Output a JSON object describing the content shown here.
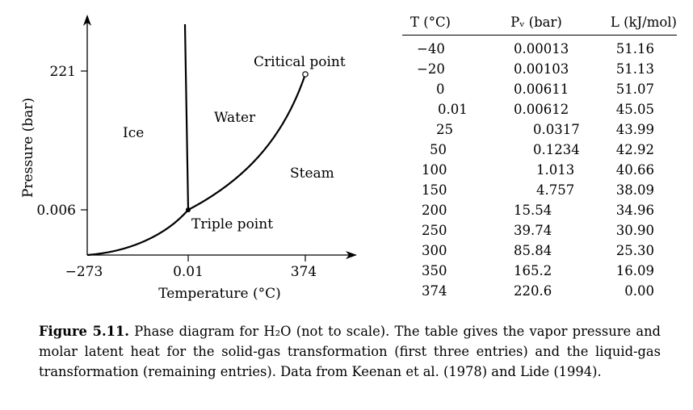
{
  "figure": {
    "number_label": "Figure 5.11.",
    "caption_text": "Phase diagram for H₂O (not to scale). The table gives the vapor pressure and molar latent heat for the solid-gas transformation (first three entries) and the liquid-gas transformation (remaining entries). Data from Keenan et al. (1978) and Lide (1994)."
  },
  "chart_data": {
    "type": "line",
    "title": "Phase diagram for H2O (not to scale)",
    "xlabel": "Temperature (°C)",
    "ylabel": "Pressure (bar)",
    "x_ticks": [
      "−273",
      "0.01",
      "374"
    ],
    "y_ticks": [
      "0.006",
      "221"
    ],
    "series": [
      {
        "name": "sublimation curve",
        "points": [
          [
            "-273",
            0
          ],
          [
            "0.01",
            0.006
          ]
        ]
      },
      {
        "name": "melting curve",
        "points": [
          [
            "0.01",
            0.006
          ],
          [
            "0.01-",
            "top"
          ]
        ]
      },
      {
        "name": "vaporization curve",
        "points": [
          [
            "0.01",
            0.006
          ],
          [
            "374",
            221
          ]
        ]
      }
    ],
    "regions": [
      "Ice",
      "Water",
      "Steam"
    ],
    "annotations": [
      "Critical point",
      "Triple point"
    ]
  },
  "table": {
    "headers": {
      "t": "T (°C)",
      "p": "Pᵥ (bar)",
      "l": "L (kJ/mol)"
    },
    "rows": [
      {
        "t": "−40",
        "p": "0.00013",
        "l": "51.16"
      },
      {
        "t": "−20",
        "p": "0.00103",
        "l": "51.13"
      },
      {
        "t": "0",
        "p": "0.00611",
        "l": "51.07"
      },
      {
        "t": "0.01",
        "p": "0.00612",
        "l": "45.05"
      },
      {
        "t": "25",
        "p": "0.0317",
        "l": "43.99"
      },
      {
        "t": "50",
        "p": "0.1234",
        "l": "42.92"
      },
      {
        "t": "100",
        "p": "1.013",
        "l": "40.66"
      },
      {
        "t": "150",
        "p": "4.757",
        "l": "38.09"
      },
      {
        "t": "200",
        "p": "15.54",
        "l": "34.96"
      },
      {
        "t": "250",
        "p": "39.74",
        "l": "30.90"
      },
      {
        "t": "300",
        "p": "85.84",
        "l": "25.30"
      },
      {
        "t": "350",
        "p": "165.2",
        "l": "16.09"
      },
      {
        "t": "374",
        "p": "220.6",
        "l": "0.00"
      }
    ]
  }
}
